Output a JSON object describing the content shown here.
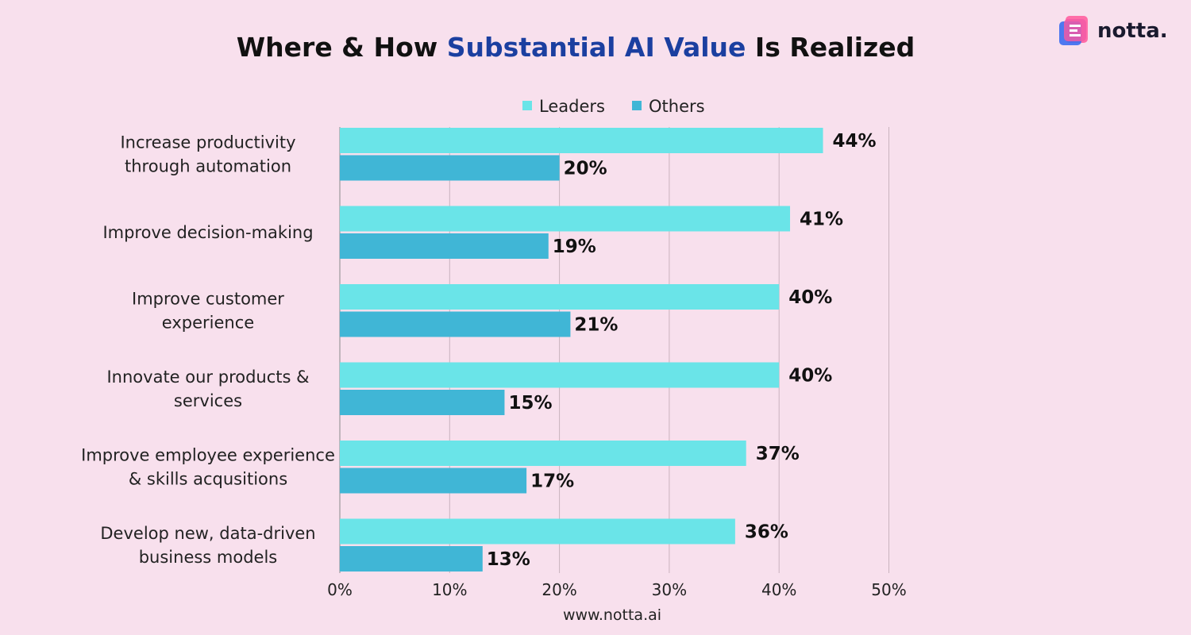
{
  "title": {
    "prefix": "Where & How ",
    "highlight": "Substantial AI Value",
    "suffix": " Is Realized"
  },
  "brand": {
    "name": "notta."
  },
  "footer": {
    "url": "www.notta.ai"
  },
  "colors": {
    "background": "#f8e0ed",
    "leaders": "#6ae4e8",
    "others": "#40b6d6",
    "accent": "#1b3fa0",
    "grid": "#c9b3be"
  },
  "chart_data": {
    "type": "bar",
    "orientation": "horizontal",
    "title": "Where & How Substantial AI Value Is Realized",
    "legend_position": "top",
    "xlim": [
      0,
      50
    ],
    "x_ticks": [
      "0%",
      "10%",
      "20%",
      "30%",
      "40%",
      "50%"
    ],
    "categories": [
      [
        "Increase productivity",
        "through automation"
      ],
      [
        "Improve decision-making"
      ],
      [
        "Improve customer",
        "experience"
      ],
      [
        "Innovate our products &",
        "services"
      ],
      [
        "Improve employee experience",
        "& skills acqusitions"
      ],
      [
        "Develop new, data-driven",
        "business models"
      ]
    ],
    "series": [
      {
        "name": "Leaders",
        "values": [
          44,
          41,
          40,
          40,
          37,
          36
        ],
        "labels": [
          "44%",
          "41%",
          "40%",
          "40%",
          "37%",
          "36%"
        ]
      },
      {
        "name": "Others",
        "values": [
          20,
          19,
          21,
          15,
          17,
          13
        ],
        "labels": [
          "20%",
          "19%",
          "21%",
          "15%",
          "17%",
          "13%"
        ]
      }
    ]
  }
}
